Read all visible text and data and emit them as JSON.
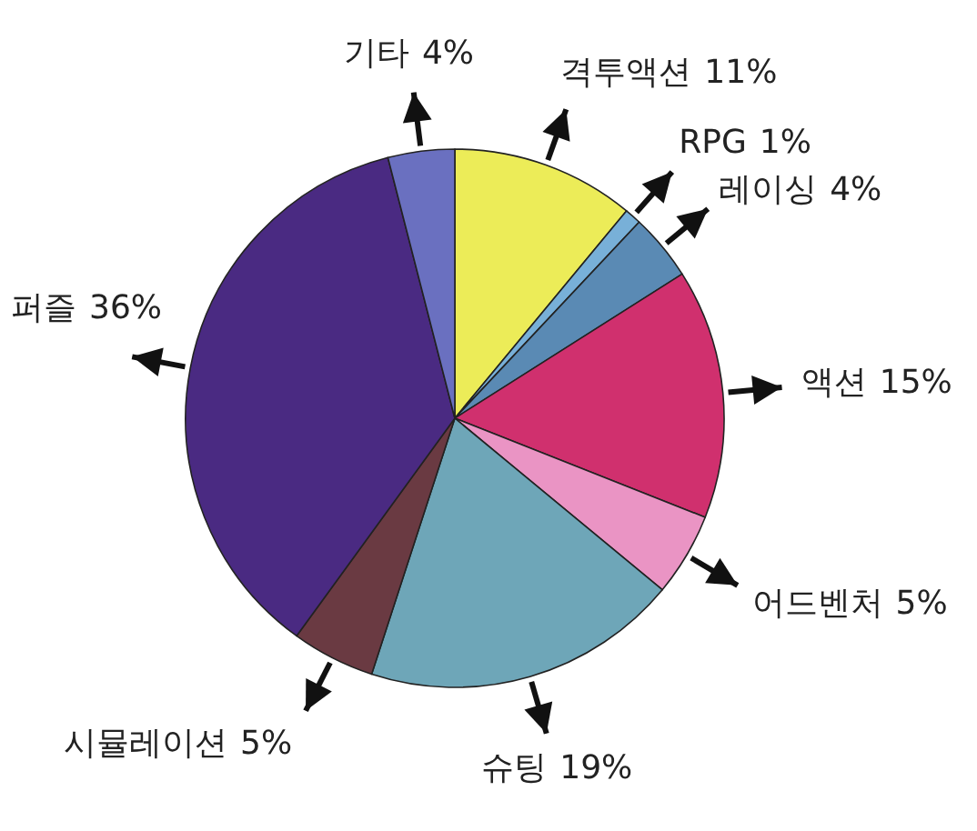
{
  "chart_data": {
    "type": "pie",
    "categories": [
      "격투액션",
      "RPG",
      "레이싱",
      "액션",
      "어드벤처",
      "슈팅",
      "시뮬레이션",
      "퍼즐",
      "기타"
    ],
    "values": [
      11,
      1,
      4,
      15,
      5,
      19,
      5,
      36,
      4
    ],
    "value_labels": [
      "11%",
      "1%",
      "4%",
      "15%",
      "5%",
      "19%",
      "5%",
      "36%",
      "4%"
    ],
    "colors": [
      "#ecec58",
      "#78b0d8",
      "#5a8ab4",
      "#d0306e",
      "#ea94c4",
      "#6ea6b8",
      "#6a3a42",
      "#4a2a82",
      "#6a70c0"
    ]
  }
}
